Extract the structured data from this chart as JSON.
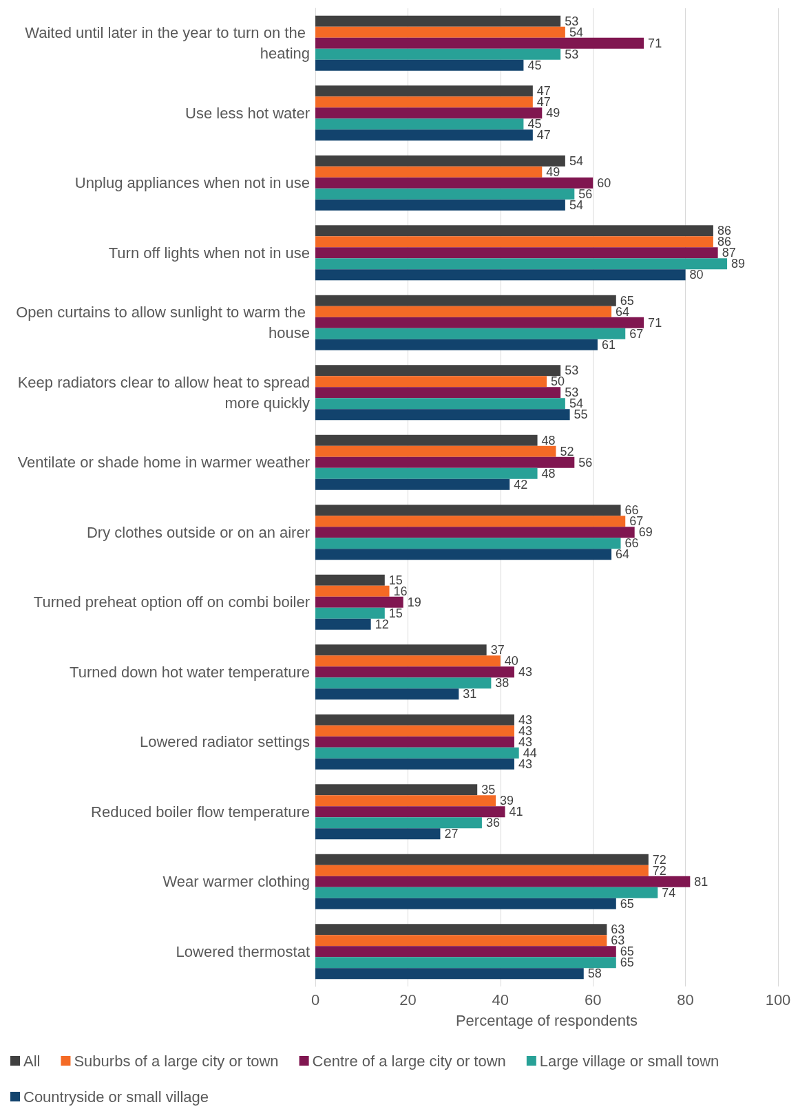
{
  "chart_data": {
    "type": "bar",
    "orientation": "horizontal",
    "xlabel": "Percentage of respondents",
    "categories": [
      "Waited until later in the year to turn on the heating",
      "Use less hot water",
      "Unplug appliances when not in use",
      "Turn off lights when not in use",
      "Open curtains to allow sunlight to warm the house",
      "Keep radiators clear to allow heat to spread more quickly",
      "Ventilate or shade home in warmer weather",
      "Dry clothes outside or on an airer",
      "Turned preheat option off on combi boiler",
      "Turned down hot water temperature",
      "Lowered radiator settings",
      "Reduced boiler flow temperature",
      "Wear warmer clothing",
      "Lowered thermostat"
    ],
    "series": [
      {
        "name": "All",
        "color": "#404040",
        "values": [
          53,
          47,
          54,
          86,
          65,
          53,
          48,
          66,
          15,
          37,
          43,
          35,
          72,
          63
        ]
      },
      {
        "name": "Suburbs of a large city or town",
        "color": "#f46a25",
        "values": [
          54,
          47,
          49,
          86,
          64,
          50,
          52,
          67,
          16,
          40,
          43,
          39,
          72,
          63
        ]
      },
      {
        "name": "Centre of a large city or town",
        "color": "#801650",
        "values": [
          71,
          49,
          60,
          87,
          71,
          53,
          56,
          69,
          19,
          43,
          43,
          41,
          81,
          65
        ]
      },
      {
        "name": "Large village or small town",
        "color": "#28a197",
        "values": [
          53,
          45,
          56,
          89,
          67,
          54,
          48,
          66,
          15,
          38,
          44,
          36,
          74,
          65
        ]
      },
      {
        "name": "Countryside or small village",
        "color": "#12436d",
        "values": [
          45,
          47,
          54,
          80,
          61,
          55,
          42,
          64,
          12,
          31,
          43,
          27,
          65,
          58
        ]
      }
    ],
    "xlim": [
      0,
      100
    ],
    "xticks": [
      0,
      20,
      40,
      60,
      80,
      100
    ],
    "grid": "x",
    "legend": "bottom",
    "data_labels": true
  }
}
